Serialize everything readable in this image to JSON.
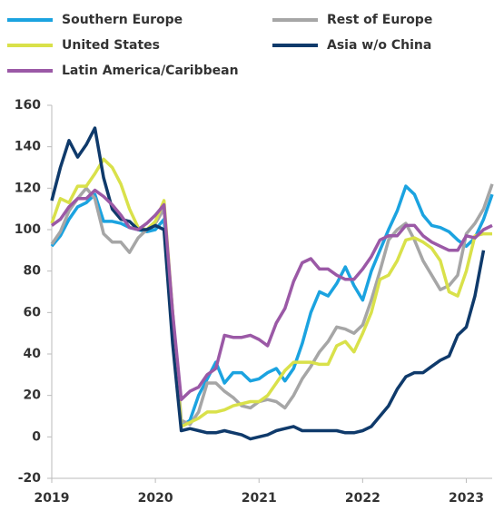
{
  "chart_data": {
    "type": "line",
    "categories": [
      "2019",
      null,
      null,
      null,
      null,
      null,
      null,
      null,
      null,
      null,
      null,
      null,
      "2020",
      null,
      null,
      null,
      null,
      null,
      null,
      null,
      null,
      null,
      null,
      null,
      "2021",
      null,
      null,
      null,
      null,
      null,
      null,
      null,
      null,
      null,
      null,
      null,
      "2022",
      null,
      null,
      null,
      null,
      null,
      null,
      null,
      null,
      null,
      null,
      null,
      "2023",
      null,
      null,
      null
    ],
    "series": [
      {
        "name": "Southern Europe",
        "color": "#1ba3e0",
        "values": [
          92,
          97,
          105,
          111,
          113,
          117,
          104,
          104,
          103,
          101,
          100,
          99,
          100,
          105,
          55,
          5,
          8,
          20,
          28,
          36,
          26,
          31,
          31,
          27,
          28,
          31,
          33,
          27,
          33,
          45,
          60,
          70,
          68,
          74,
          82,
          73,
          66,
          80,
          90,
          100,
          109,
          121,
          117,
          107,
          102,
          101,
          99,
          95,
          92,
          96,
          105,
          117
        ]
      },
      {
        "name": "Rest of Europe",
        "color": "#a6a6a6",
        "values": [
          93,
          99,
          109,
          115,
          120,
          115,
          98,
          94,
          94,
          89,
          96,
          100,
          103,
          110,
          60,
          8,
          6,
          12,
          26,
          26,
          22,
          19,
          15,
          14,
          17,
          18,
          17,
          14,
          20,
          28,
          34,
          41,
          46,
          53,
          52,
          50,
          54,
          66,
          80,
          95,
          100,
          103,
          95,
          85,
          78,
          71,
          73,
          78,
          98,
          103,
          110,
          122
        ]
      },
      {
        "name": "United States",
        "color": "#d9e14a",
        "values": [
          103,
          115,
          113,
          121,
          121,
          127,
          134,
          130,
          122,
          110,
          101,
          100,
          104,
          114,
          60,
          5,
          7,
          9,
          12,
          12,
          13,
          15,
          16,
          17,
          17,
          20,
          26,
          32,
          36,
          36,
          36,
          35,
          35,
          44,
          46,
          41,
          50,
          60,
          76,
          78,
          85,
          95,
          96,
          94,
          91,
          85,
          70,
          68,
          80,
          97,
          98,
          98
        ]
      },
      {
        "name": "Asia w/o China",
        "color": "#0f3a6b",
        "values": [
          114,
          130,
          143,
          135,
          141,
          149,
          125,
          110,
          105,
          104,
          100,
          100,
          102,
          100,
          45,
          3,
          4,
          3,
          2,
          2,
          3,
          2,
          1,
          -1,
          0,
          1,
          3,
          4,
          5,
          3,
          3,
          3,
          3,
          3,
          2,
          2,
          3,
          5,
          10,
          15,
          23,
          29,
          31,
          31,
          34,
          37,
          39,
          49,
          53,
          68,
          90,
          null
        ]
      },
      {
        "name": "Latin America/Caribbean",
        "color": "#9b59a6",
        "values": [
          102,
          105,
          111,
          115,
          115,
          119,
          116,
          112,
          107,
          101,
          100,
          103,
          107,
          112,
          60,
          18,
          22,
          24,
          30,
          33,
          49,
          48,
          48,
          49,
          47,
          44,
          55,
          62,
          75,
          84,
          86,
          81,
          81,
          78,
          76,
          76,
          81,
          87,
          95,
          97,
          97,
          102,
          102,
          97,
          94,
          92,
          90,
          90,
          97,
          96,
          100,
          102
        ]
      }
    ],
    "ylim": [
      -20,
      160
    ],
    "yticks": [
      -20,
      0,
      20,
      40,
      60,
      80,
      100,
      120,
      140,
      160
    ]
  }
}
